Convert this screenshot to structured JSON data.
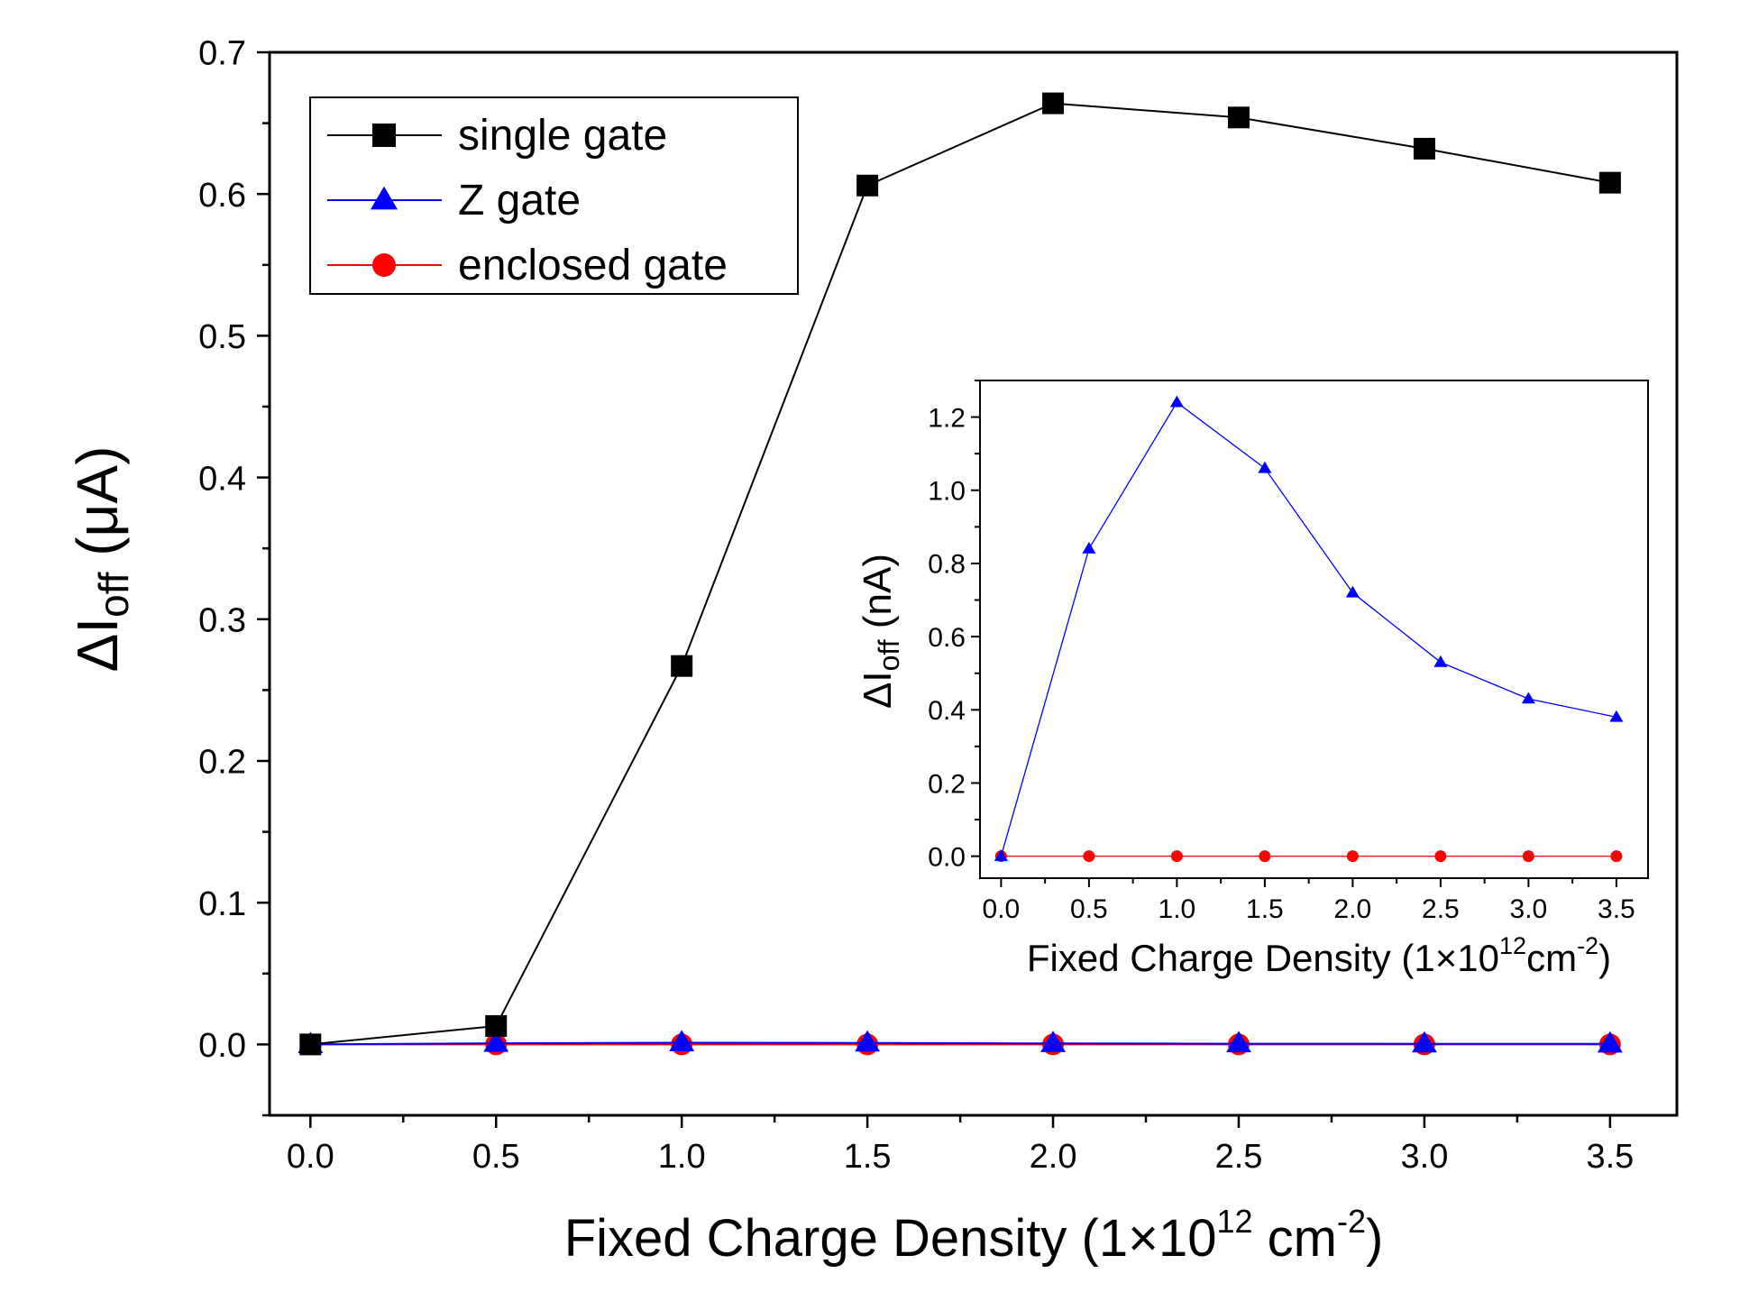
{
  "chart_data": [
    {
      "id": "main",
      "type": "line",
      "title": "",
      "xlabel": {
        "prefix": "Fixed Charge Density (1×10",
        "sup": "12",
        "middle": " cm",
        "sup2": "-2",
        "suffix": ")"
      },
      "ylabel": {
        "delta": "Δ",
        "main": "I",
        "sub": "off",
        "unit": " (μA)"
      },
      "xlim": [
        -0.11,
        3.68
      ],
      "ylim": [
        -0.05,
        0.7
      ],
      "x_ticks": [
        0.0,
        0.5,
        1.0,
        1.5,
        2.0,
        2.5,
        3.0,
        3.5
      ],
      "x_tick_labels": [
        "0.0",
        "0.5",
        "1.0",
        "1.5",
        "2.0",
        "2.5",
        "3.0",
        "3.5"
      ],
      "y_ticks": [
        0.0,
        0.1,
        0.2,
        0.3,
        0.4,
        0.5,
        0.6,
        0.7
      ],
      "y_tick_labels": [
        "0.0",
        "0.1",
        "0.2",
        "0.3",
        "0.4",
        "0.5",
        "0.6",
        "0.7"
      ],
      "legend_position": "top-left",
      "series": [
        {
          "name": "single gate",
          "marker": "square",
          "color": "#000000",
          "x": [
            0.0,
            0.5,
            1.0,
            1.5,
            2.0,
            2.5,
            3.0,
            3.5
          ],
          "values": [
            0.0,
            0.013,
            0.267,
            0.606,
            0.664,
            0.654,
            0.632,
            0.608
          ]
        },
        {
          "name": "Z gate",
          "marker": "triangle",
          "color": "#0000ff",
          "x": [
            0.0,
            0.5,
            1.0,
            1.5,
            2.0,
            2.5,
            3.0,
            3.5
          ],
          "values": [
            0.0,
            0.00084,
            0.00124,
            0.00106,
            0.00072,
            0.00053,
            0.00043,
            0.00038
          ]
        },
        {
          "name": "enclosed gate",
          "marker": "circle",
          "color": "#ff0000",
          "x": [
            0.0,
            0.5,
            1.0,
            1.5,
            2.0,
            2.5,
            3.0,
            3.5
          ],
          "values": [
            0.0,
            0.0,
            0.0,
            0.0,
            0.0,
            0.0,
            0.0,
            0.0
          ]
        }
      ]
    },
    {
      "id": "inset",
      "type": "line",
      "title": "",
      "xlabel": {
        "prefix": "Fixed Charge Density (1×10",
        "sup": "12",
        "middle": "cm",
        "sup2": "-2",
        "suffix": ")"
      },
      "ylabel": {
        "delta": "Δ",
        "main": "I",
        "sub": "off",
        "unit": " (nA)"
      },
      "xlim": [
        -0.12,
        3.68
      ],
      "ylim": [
        -0.06,
        1.3
      ],
      "x_ticks": [
        0.0,
        0.5,
        1.0,
        1.5,
        2.0,
        2.5,
        3.0,
        3.5
      ],
      "x_tick_labels": [
        "0.0",
        "0.5",
        "1.0",
        "1.5",
        "2.0",
        "2.5",
        "3.0",
        "3.5"
      ],
      "y_ticks": [
        0.0,
        0.2,
        0.4,
        0.6,
        0.8,
        1.0,
        1.2
      ],
      "y_tick_labels": [
        "0.0",
        "0.2",
        "0.4",
        "0.6",
        "0.8",
        "1.0",
        "1.2"
      ],
      "series": [
        {
          "name": "Z gate",
          "marker": "triangle",
          "color": "#0000ff",
          "x": [
            0.0,
            0.5,
            1.0,
            1.5,
            2.0,
            2.5,
            3.0,
            3.5
          ],
          "values": [
            0.0,
            0.84,
            1.24,
            1.06,
            0.72,
            0.53,
            0.43,
            0.38
          ]
        },
        {
          "name": "enclosed gate",
          "marker": "circle",
          "color": "#ff0000",
          "x": [
            0.0,
            0.5,
            1.0,
            1.5,
            2.0,
            2.5,
            3.0,
            3.5
          ],
          "values": [
            0.0,
            0.0,
            0.0,
            0.0,
            0.0,
            0.0,
            0.0,
            0.0
          ]
        }
      ]
    }
  ]
}
